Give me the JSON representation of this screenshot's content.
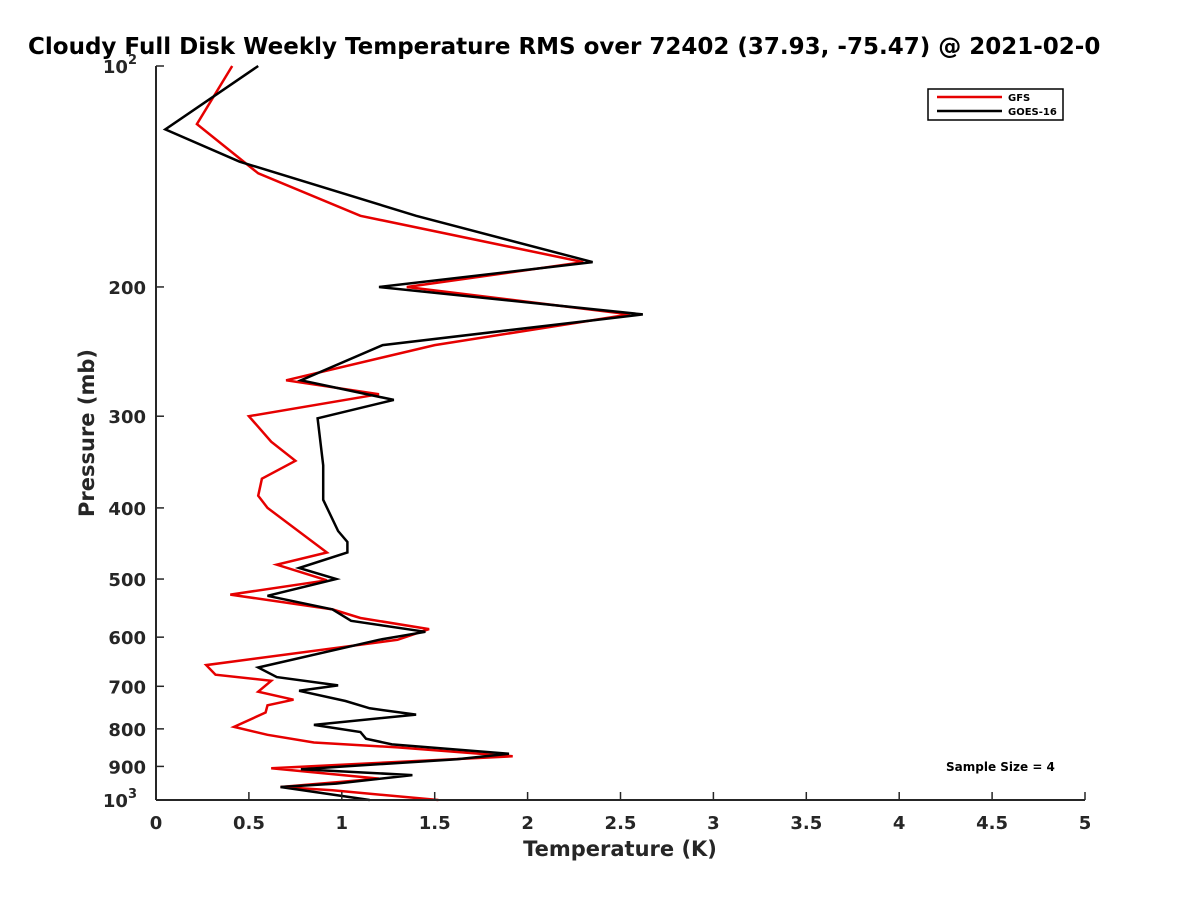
{
  "chart_data": {
    "type": "line",
    "title": "Cloudy Full Disk Weekly Temperature RMS over 72402 (37.93, -75.47) @ 2021-02-0",
    "xlabel": "Temperature (K)",
    "ylabel": "Pressure (mb)",
    "xlim": [
      0,
      5
    ],
    "ylim": [
      100,
      1000
    ],
    "y_scale": "log",
    "y_reversed": true,
    "x_ticks": [
      "0",
      "0.5",
      "1",
      "1.5",
      "2",
      "2.5",
      "3",
      "3.5",
      "4",
      "4.5",
      "5"
    ],
    "y_ticks": [
      {
        "value": 100,
        "label": "10",
        "sup": "2"
      },
      {
        "value": 200,
        "label": "200",
        "sup": ""
      },
      {
        "value": 300,
        "label": "300",
        "sup": ""
      },
      {
        "value": 400,
        "label": "400",
        "sup": ""
      },
      {
        "value": 500,
        "label": "500",
        "sup": ""
      },
      {
        "value": 600,
        "label": "600",
        "sup": ""
      },
      {
        "value": 700,
        "label": "700",
        "sup": ""
      },
      {
        "value": 800,
        "label": "800",
        "sup": ""
      },
      {
        "value": 900,
        "label": "900",
        "sup": ""
      },
      {
        "value": 1000,
        "label": "10",
        "sup": "3"
      }
    ],
    "grid": false,
    "legend_position": "top-right",
    "annotation": "Sample Size = 4",
    "series": [
      {
        "name": "GFS",
        "color": "#e60000",
        "points": [
          [
            0.41,
            100
          ],
          [
            0.22,
            120
          ],
          [
            0.55,
            140
          ],
          [
            1.1,
            160
          ],
          [
            2.3,
            185
          ],
          [
            1.35,
            200
          ],
          [
            2.55,
            218
          ],
          [
            1.5,
            240
          ],
          [
            0.7,
            268
          ],
          [
            1.2,
            280
          ],
          [
            0.5,
            300
          ],
          [
            0.62,
            325
          ],
          [
            0.75,
            345
          ],
          [
            0.57,
            365
          ],
          [
            0.55,
            385
          ],
          [
            0.6,
            400
          ],
          [
            0.92,
            460
          ],
          [
            0.65,
            478
          ],
          [
            0.92,
            502
          ],
          [
            0.4,
            525
          ],
          [
            0.95,
            550
          ],
          [
            1.1,
            565
          ],
          [
            1.47,
            585
          ],
          [
            1.3,
            605
          ],
          [
            0.27,
            655
          ],
          [
            0.32,
            675
          ],
          [
            0.62,
            688
          ],
          [
            0.55,
            712
          ],
          [
            0.74,
            730
          ],
          [
            0.6,
            743
          ],
          [
            0.59,
            760
          ],
          [
            0.42,
            795
          ],
          [
            0.6,
            815
          ],
          [
            0.85,
            835
          ],
          [
            1.3,
            848
          ],
          [
            1.92,
            872
          ],
          [
            0.62,
            905
          ],
          [
            1.2,
            935
          ],
          [
            0.67,
            960
          ],
          [
            0.95,
            970
          ],
          [
            1.52,
            1000
          ]
        ]
      },
      {
        "name": "GOES-16",
        "color": "#000000",
        "points": [
          [
            0.55,
            100
          ],
          [
            0.05,
            122
          ],
          [
            0.45,
            135
          ],
          [
            1.4,
            160
          ],
          [
            2.35,
            185
          ],
          [
            1.2,
            200
          ],
          [
            2.62,
            218
          ],
          [
            1.22,
            240
          ],
          [
            0.78,
            268
          ],
          [
            1.28,
            285
          ],
          [
            0.87,
            302
          ],
          [
            0.9,
            350
          ],
          [
            0.9,
            390
          ],
          [
            0.98,
            430
          ],
          [
            1.03,
            445
          ],
          [
            1.03,
            460
          ],
          [
            0.77,
            483
          ],
          [
            0.97,
            500
          ],
          [
            0.6,
            527
          ],
          [
            0.95,
            550
          ],
          [
            1.05,
            570
          ],
          [
            1.45,
            590
          ],
          [
            1.2,
            605
          ],
          [
            0.55,
            660
          ],
          [
            0.65,
            680
          ],
          [
            0.98,
            698
          ],
          [
            0.77,
            710
          ],
          [
            1.02,
            733
          ],
          [
            1.15,
            750
          ],
          [
            1.4,
            765
          ],
          [
            0.85,
            790
          ],
          [
            1.1,
            808
          ],
          [
            1.13,
            825
          ],
          [
            1.27,
            840
          ],
          [
            1.9,
            865
          ],
          [
            1.62,
            880
          ],
          [
            0.78,
            908
          ],
          [
            1.38,
            925
          ],
          [
            0.97,
            950
          ],
          [
            0.67,
            960
          ],
          [
            1.15,
            1000
          ]
        ]
      }
    ]
  }
}
